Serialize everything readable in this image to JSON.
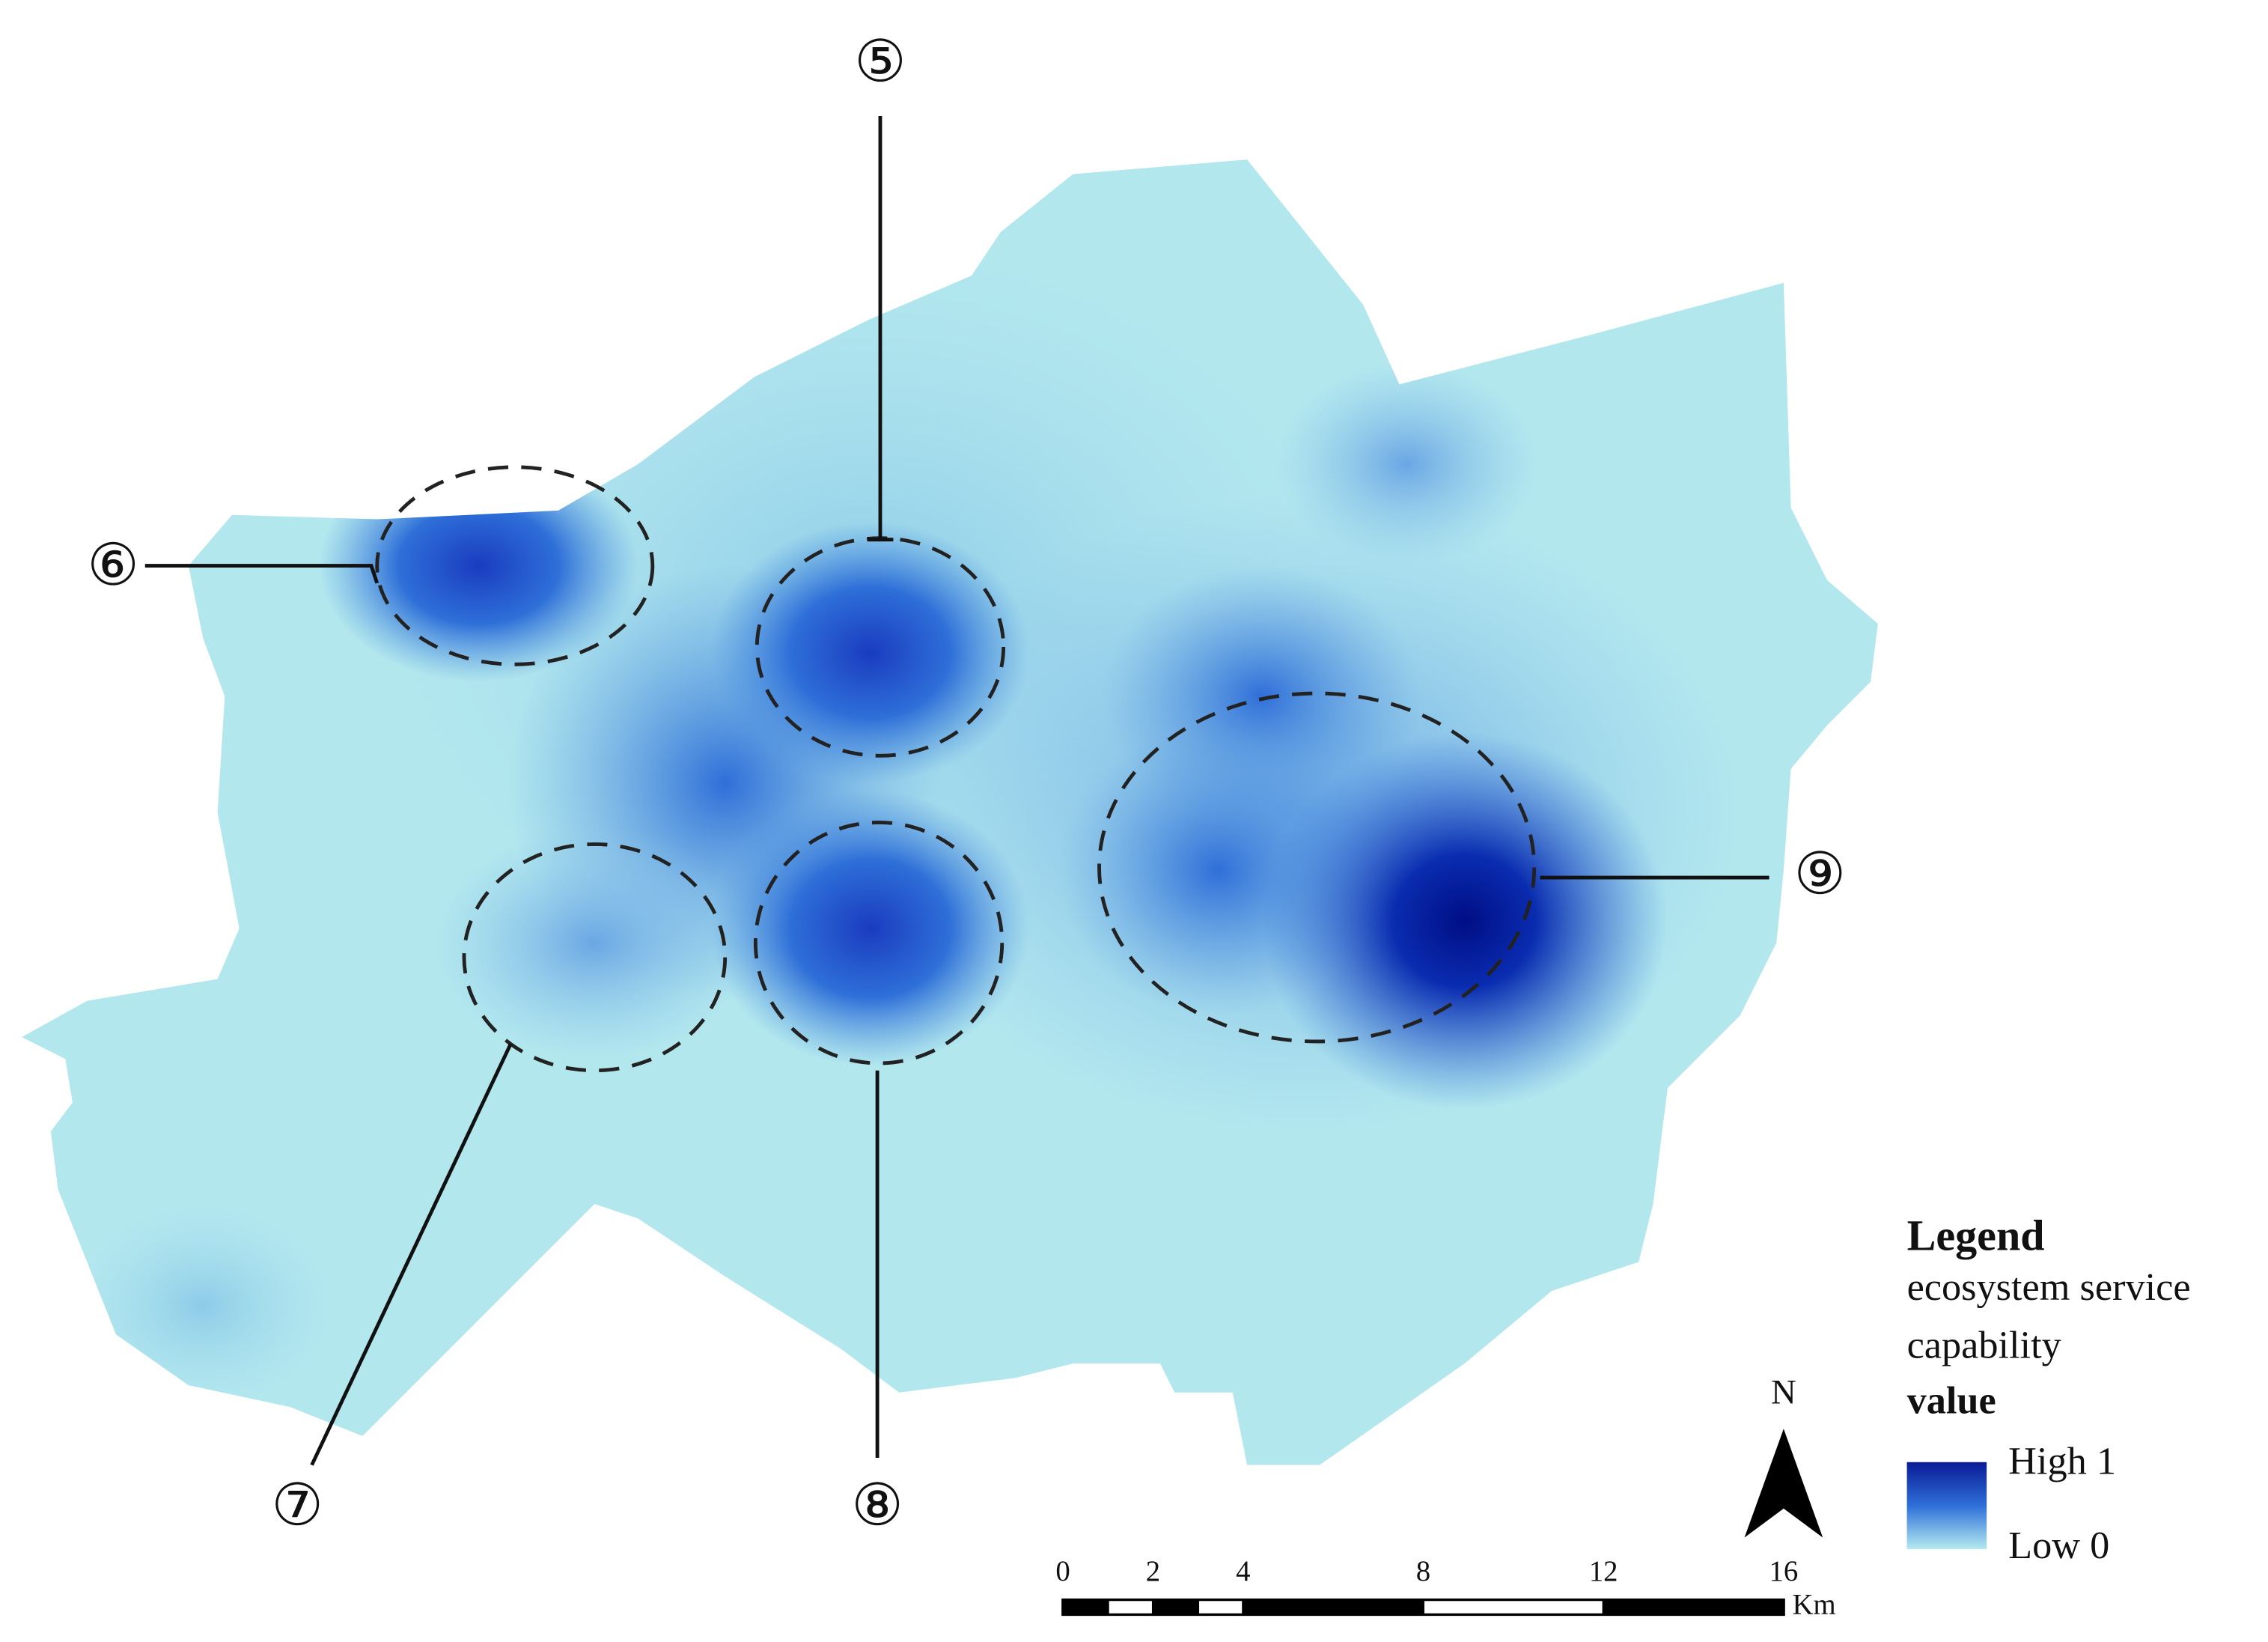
{
  "callouts": [
    {
      "label": "⑤"
    },
    {
      "label": "⑥"
    },
    {
      "label": "⑦"
    },
    {
      "label": "⑧"
    },
    {
      "label": "⑨"
    }
  ],
  "legend": {
    "title": "Legend",
    "field_lines": [
      "ecosystem service",
      "capability"
    ],
    "subtitle": "value",
    "high": "High 1",
    "low": "Low 0"
  },
  "north_arrow": {
    "label": "N"
  },
  "scale_bar": {
    "ticks": [
      0,
      2,
      4,
      8,
      12,
      16
    ],
    "divisions": [
      0,
      1,
      2,
      3,
      4,
      8,
      12,
      16
    ],
    "unit": "Km"
  }
}
